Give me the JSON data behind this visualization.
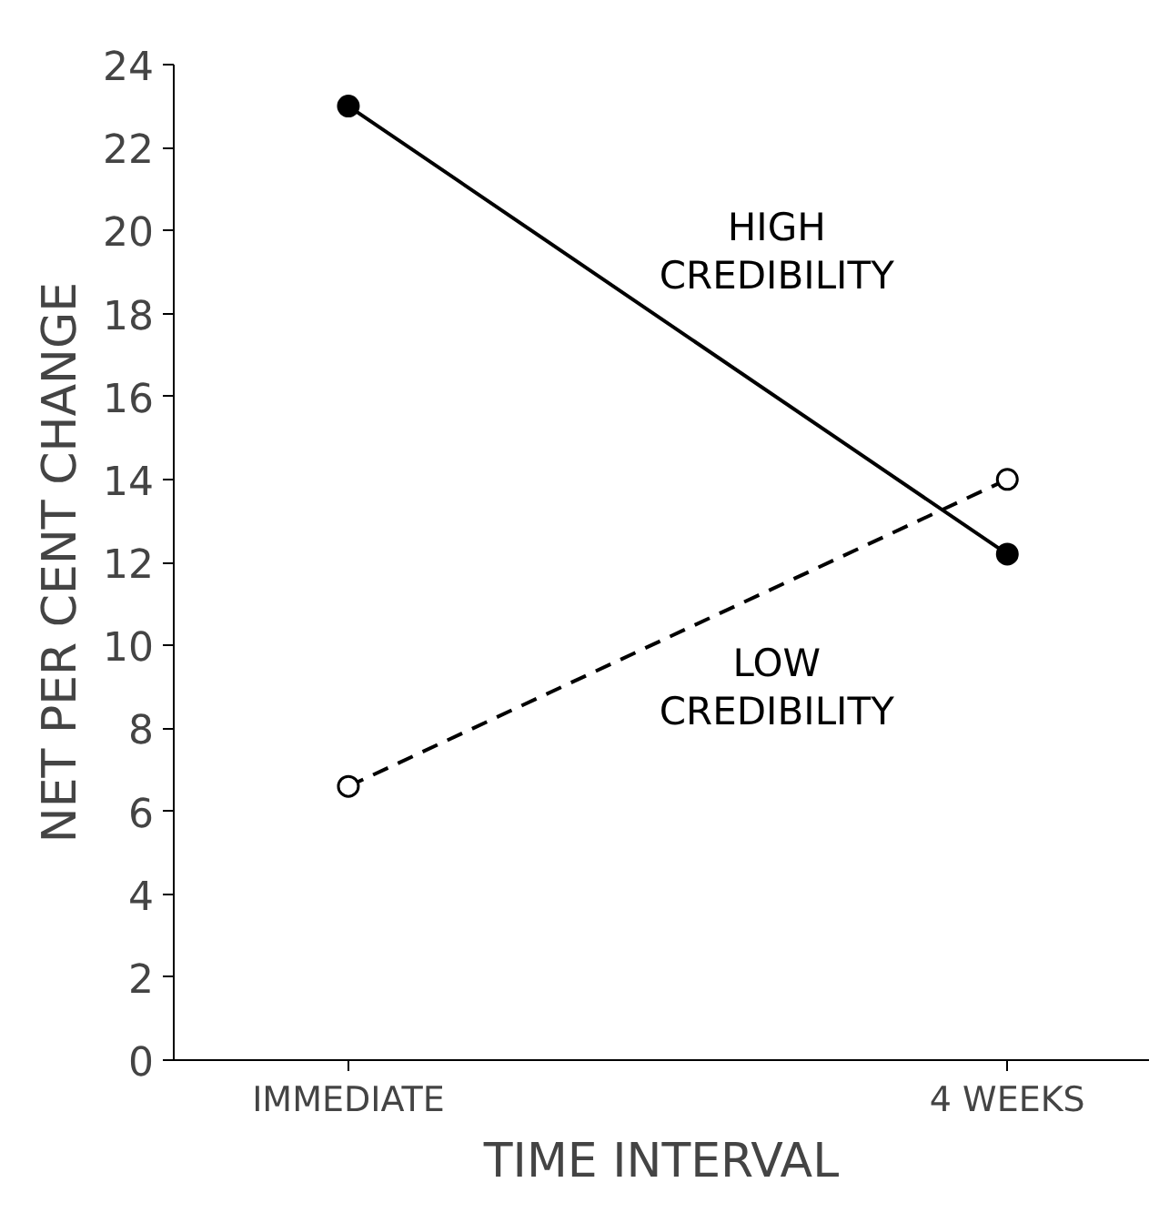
{
  "chart_data": {
    "type": "line",
    "xlabel": "TIME INTERVAL",
    "ylabel": "NET PER CENT CHANGE",
    "categories": [
      "IMMEDIATE",
      "4 WEEKS"
    ],
    "series": [
      {
        "name": "HIGH CREDIBILITY",
        "color": "#000000",
        "values": [
          23,
          12.2
        ],
        "line_style": "solid"
      },
      {
        "name": "LOW CREDIBILITY",
        "color": "#000000",
        "values": [
          6.6,
          14
        ],
        "line_style": "dashed"
      }
    ],
    "ylim": [
      0,
      24
    ],
    "yticks": [
      0,
      2,
      4,
      6,
      8,
      10,
      12,
      14,
      16,
      18,
      20,
      22,
      24
    ],
    "marker": "circle",
    "grid": false,
    "legend": false
  }
}
